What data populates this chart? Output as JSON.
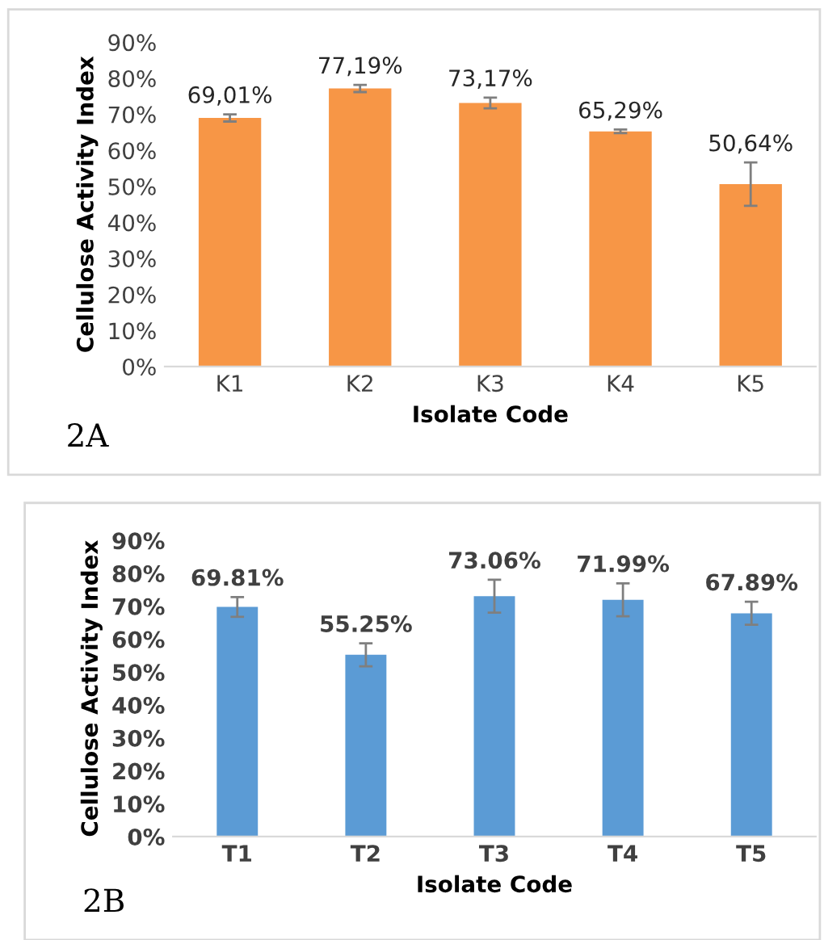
{
  "chart_data": [
    {
      "type": "bar",
      "categories": [
        "K1",
        "K2",
        "K3",
        "K4",
        "K5"
      ],
      "values": [
        69.01,
        77.19,
        73.17,
        65.29,
        50.64
      ],
      "color": "#f79646",
      "errors": [
        1,
        1,
        1.5,
        0.5,
        6
      ],
      "value_labels": [
        "69,01%",
        "77,19%",
        "73,17%",
        "65,29%",
        "50,64%"
      ],
      "xlabel": "Isolate Code",
      "ylabel": "Cellulose Activity Index",
      "annotations": [
        "2A"
      ],
      "ylim": [
        0,
        90
      ],
      "yticks": [
        {
          "value": 0,
          "label": "0%"
        },
        {
          "value": 10,
          "label": "10%"
        },
        {
          "value": 20,
          "label": "20%"
        },
        {
          "value": 30,
          "label": "30%"
        },
        {
          "value": 40,
          "label": "40%"
        },
        {
          "value": 50,
          "label": "50%"
        },
        {
          "value": 60,
          "label": "60%"
        },
        {
          "value": 70,
          "label": "70%"
        },
        {
          "value": 80,
          "label": "80%"
        },
        {
          "value": 90,
          "label": "90%"
        }
      ],
      "grid": false,
      "legend": false
    },
    {
      "type": "bar",
      "categories": [
        "T1",
        "T2",
        "T3",
        "T4",
        "T5"
      ],
      "values": [
        69.81,
        55.25,
        73.06,
        71.99,
        67.89
      ],
      "color": "#5b9bd5",
      "errors": [
        3,
        3.5,
        5,
        5,
        3.5
      ],
      "value_labels": [
        "69.81%",
        "55.25%",
        "73.06%",
        "71.99%",
        "67.89%"
      ],
      "xlabel": "Isolate Code",
      "ylabel": "Cellulose Activity Index",
      "annotations": [
        "2B"
      ],
      "ylim": [
        0,
        90
      ],
      "yticks": [
        {
          "value": 0,
          "label": "0%"
        },
        {
          "value": 10,
          "label": "10%"
        },
        {
          "value": 20,
          "label": "20%"
        },
        {
          "value": 30,
          "label": "30%"
        },
        {
          "value": 40,
          "label": "40%"
        },
        {
          "value": 50,
          "label": "50%"
        },
        {
          "value": 60,
          "label": "60%"
        },
        {
          "value": 70,
          "label": "70%"
        },
        {
          "value": 80,
          "label": "80%"
        },
        {
          "value": 90,
          "label": "90%"
        }
      ],
      "grid": false,
      "legend": false
    }
  ]
}
